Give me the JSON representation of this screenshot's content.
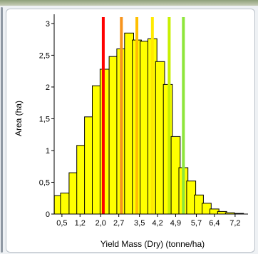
{
  "chart_data": {
    "type": "bar",
    "title": "",
    "xlabel": "Yield Mass (Dry) (tonne/ha)",
    "ylabel": "Area (ha)",
    "ylim": [
      0,
      3.1
    ],
    "xlim": [
      0.2,
      7.7
    ],
    "bar_width": 0.175,
    "bar_color": "#ffff00",
    "bar_edge_color": "#000000",
    "x_tick_values": [
      0.5,
      1.2,
      2.0,
      2.7,
      3.5,
      4.2,
      4.9,
      5.7,
      6.4,
      7.2
    ],
    "x_ticks": [
      "0,5",
      "1,2",
      "2,0",
      "2,7",
      "3,5",
      "4,2",
      "4,9",
      "5,7",
      "6,4",
      "7,2"
    ],
    "y_tick_values": [
      0,
      0.5,
      1,
      1.5,
      2,
      2.5,
      3
    ],
    "y_ticks": [
      "0",
      "0,5",
      "1",
      "1,5",
      "2",
      "2,5",
      "3"
    ],
    "bins": [
      0.38,
      0.62,
      0.95,
      1.25,
      1.55,
      1.85,
      2.15,
      2.5,
      2.8,
      3.1,
      3.4,
      3.7,
      4.0,
      4.3,
      4.6,
      4.9,
      5.2,
      5.5,
      5.8,
      6.1,
      6.4,
      6.7,
      7.0,
      7.35
    ],
    "values": [
      0.29,
      0.33,
      0.65,
      1.08,
      1.53,
      2.02,
      2.28,
      2.48,
      2.6,
      2.85,
      2.74,
      2.72,
      2.76,
      2.4,
      2.04,
      1.22,
      0.73,
      0.52,
      0.3,
      0.17,
      0.08,
      0.04,
      0.02,
      0.01
    ],
    "markers": [
      {
        "x": 2.1,
        "color": "#ff0000"
      },
      {
        "x": 2.8,
        "color": "#f7941d"
      },
      {
        "x": 3.4,
        "color": "#ffc000"
      },
      {
        "x": 4.0,
        "color": "#ffea00"
      },
      {
        "x": 4.65,
        "color": "#c8f000"
      },
      {
        "x": 5.2,
        "color": "#8ee63c"
      }
    ]
  }
}
